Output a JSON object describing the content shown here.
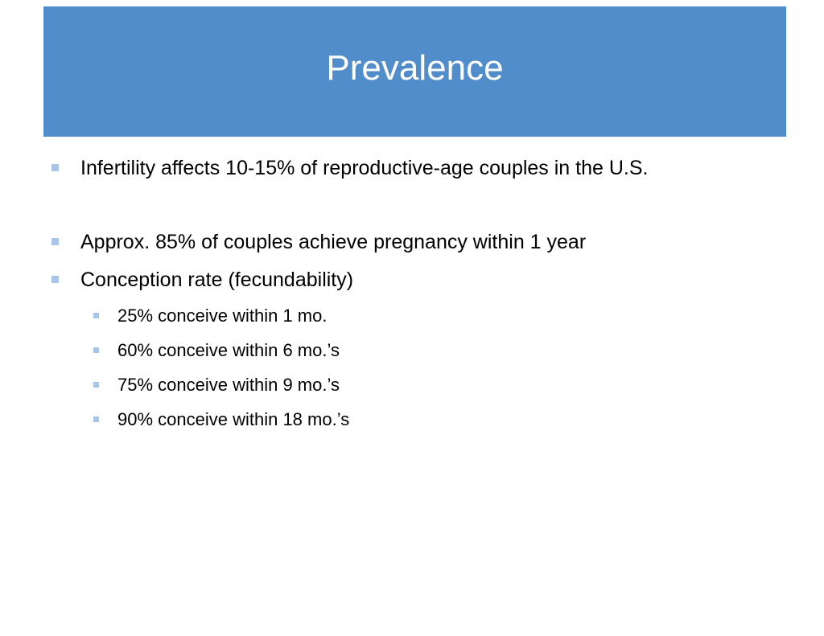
{
  "slide": {
    "title": "Prevalence",
    "accent_color": "#518dca",
    "bullet_color": "#a9c4e6",
    "bullets": [
      {
        "text": "Infertility affects 10-15% of reproductive-age couples in the U.S."
      },
      {
        "text": "Approx. 85% of couples achieve pregnancy within 1 year"
      },
      {
        "text": "Conception rate (fecundability)",
        "sub": [
          {
            "text": "25% conceive within 1 mo."
          },
          {
            "text": "60% conceive within 6 mo.’s"
          },
          {
            "text": "75% conceive within 9 mo.’s"
          },
          {
            "text": "90% conceive within 18 mo.’s"
          }
        ]
      }
    ]
  }
}
